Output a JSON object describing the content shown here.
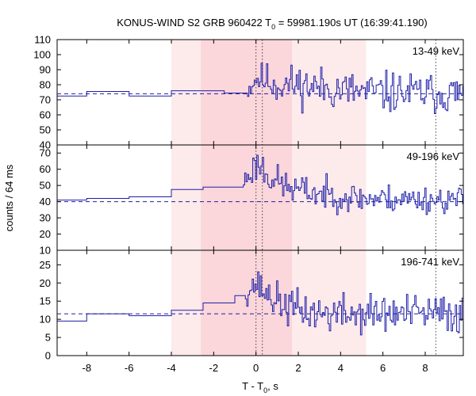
{
  "chart_data": {
    "type": "line",
    "title": {
      "prefix": "KONUS-WIND S2 GRB 960422 T",
      "sub": "0",
      "suffix": " = 59981.190s UT (16:39:41.190)"
    },
    "xlabel": {
      "prefix": "T - T",
      "sub": "0",
      "suffix": ", s"
    },
    "ylabel": "counts / 64 ms",
    "xlim": [
      -9.4,
      9.8
    ],
    "xticks": [
      -8,
      -6,
      -4,
      -2,
      0,
      2,
      4,
      6,
      8
    ],
    "shaded_intervals": [
      {
        "from": -4.0,
        "to": 5.2,
        "level": "light"
      },
      {
        "from": -2.6,
        "to": 1.7,
        "level": "dark"
      }
    ],
    "dotted_markers": [
      0.0,
      0.3,
      8.5
    ],
    "colors": {
      "series": "#1f1fa8",
      "light_band": "#fdeaea",
      "dark_band": "#fbd6da",
      "axis": "#000000",
      "marker": "#444444"
    },
    "panels": [
      {
        "band_label": "13-49 keV",
        "ylim": [
          40,
          110
        ],
        "yticks": [
          40,
          50,
          60,
          70,
          80,
          90,
          100,
          110
        ],
        "background": 74,
        "step_segments": [
          {
            "x": [
              -9.4,
              -8.0
            ],
            "y": 72.5
          },
          {
            "x": [
              -8.0,
              -6.0
            ],
            "y": 75.5
          },
          {
            "x": [
              -6.0,
              -4.0
            ],
            "y": 72.5
          },
          {
            "x": [
              -4.0,
              -1.5
            ],
            "y": 76.0
          },
          {
            "x": [
              -1.5,
              -0.4
            ],
            "y": 74.5
          }
        ],
        "fine": {
          "start": -0.4,
          "end": 9.8,
          "bin": 0.064,
          "seed": 11,
          "profile": [
            {
              "t": -0.4,
              "v": 76
            },
            {
              "t": 0.0,
              "v": 84
            },
            {
              "t": 0.5,
              "v": 83
            },
            {
              "t": 1.0,
              "v": 80
            },
            {
              "t": 2.0,
              "v": 80
            },
            {
              "t": 5.0,
              "v": 75
            },
            {
              "t": 9.8,
              "v": 74
            }
          ],
          "noise": [
            {
              "t": -0.4,
              "v": 5
            },
            {
              "t": 0.5,
              "v": 9
            },
            {
              "t": 2.0,
              "v": 10
            },
            {
              "t": 9.8,
              "v": 10
            }
          ]
        }
      },
      {
        "band_label": "49-196 keV",
        "ylim": [
          10,
          75
        ],
        "yticks": [
          10,
          20,
          30,
          40,
          50,
          60,
          70
        ],
        "background": 40,
        "step_segments": [
          {
            "x": [
              -9.4,
              -8.0
            ],
            "y": 41.0
          },
          {
            "x": [
              -8.0,
              -6.0
            ],
            "y": 42.0
          },
          {
            "x": [
              -6.0,
              -4.0
            ],
            "y": 43.0
          },
          {
            "x": [
              -4.0,
              -2.5
            ],
            "y": 47.5
          },
          {
            "x": [
              -2.5,
              -0.6
            ],
            "y": 49.0
          }
        ],
        "fine": {
          "start": -0.6,
          "end": 9.8,
          "bin": 0.064,
          "seed": 23,
          "profile": [
            {
              "t": -0.6,
              "v": 52
            },
            {
              "t": 0.1,
              "v": 64
            },
            {
              "t": 0.5,
              "v": 58
            },
            {
              "t": 1.0,
              "v": 52
            },
            {
              "t": 1.7,
              "v": 48
            },
            {
              "t": 3.0,
              "v": 45
            },
            {
              "t": 5.0,
              "v": 42
            },
            {
              "t": 9.8,
              "v": 41
            }
          ],
          "noise": [
            {
              "t": -0.6,
              "v": 5
            },
            {
              "t": 0.3,
              "v": 9
            },
            {
              "t": 1.5,
              "v": 7
            },
            {
              "t": 9.8,
              "v": 6
            }
          ]
        }
      },
      {
        "band_label": "196-741 keV",
        "ylim": [
          0,
          29
        ],
        "yticks": [
          0,
          5,
          10,
          15,
          20,
          25
        ],
        "background": 11.5,
        "step_segments": [
          {
            "x": [
              -9.4,
              -8.0
            ],
            "y": 9.5
          },
          {
            "x": [
              -8.0,
              -6.0
            ],
            "y": 11.5
          },
          {
            "x": [
              -6.0,
              -4.0
            ],
            "y": 11.0
          },
          {
            "x": [
              -4.0,
              -2.5
            ],
            "y": 12.5
          },
          {
            "x": [
              -2.5,
              -1.0
            ],
            "y": 14.5
          },
          {
            "x": [
              -1.0,
              -0.5
            ],
            "y": 16.5
          }
        ],
        "fine": {
          "start": -0.5,
          "end": 9.8,
          "bin": 0.064,
          "seed": 37,
          "profile": [
            {
              "t": -0.5,
              "v": 17
            },
            {
              "t": 0.0,
              "v": 20
            },
            {
              "t": 0.5,
              "v": 17
            },
            {
              "t": 1.0,
              "v": 15
            },
            {
              "t": 1.7,
              "v": 13
            },
            {
              "t": 3.0,
              "v": 11.5
            },
            {
              "t": 9.8,
              "v": 11.5
            }
          ],
          "noise": [
            {
              "t": -0.5,
              "v": 2.5
            },
            {
              "t": 0.5,
              "v": 3.5
            },
            {
              "t": 2.0,
              "v": 4
            },
            {
              "t": 9.8,
              "v": 4
            }
          ]
        }
      }
    ]
  }
}
